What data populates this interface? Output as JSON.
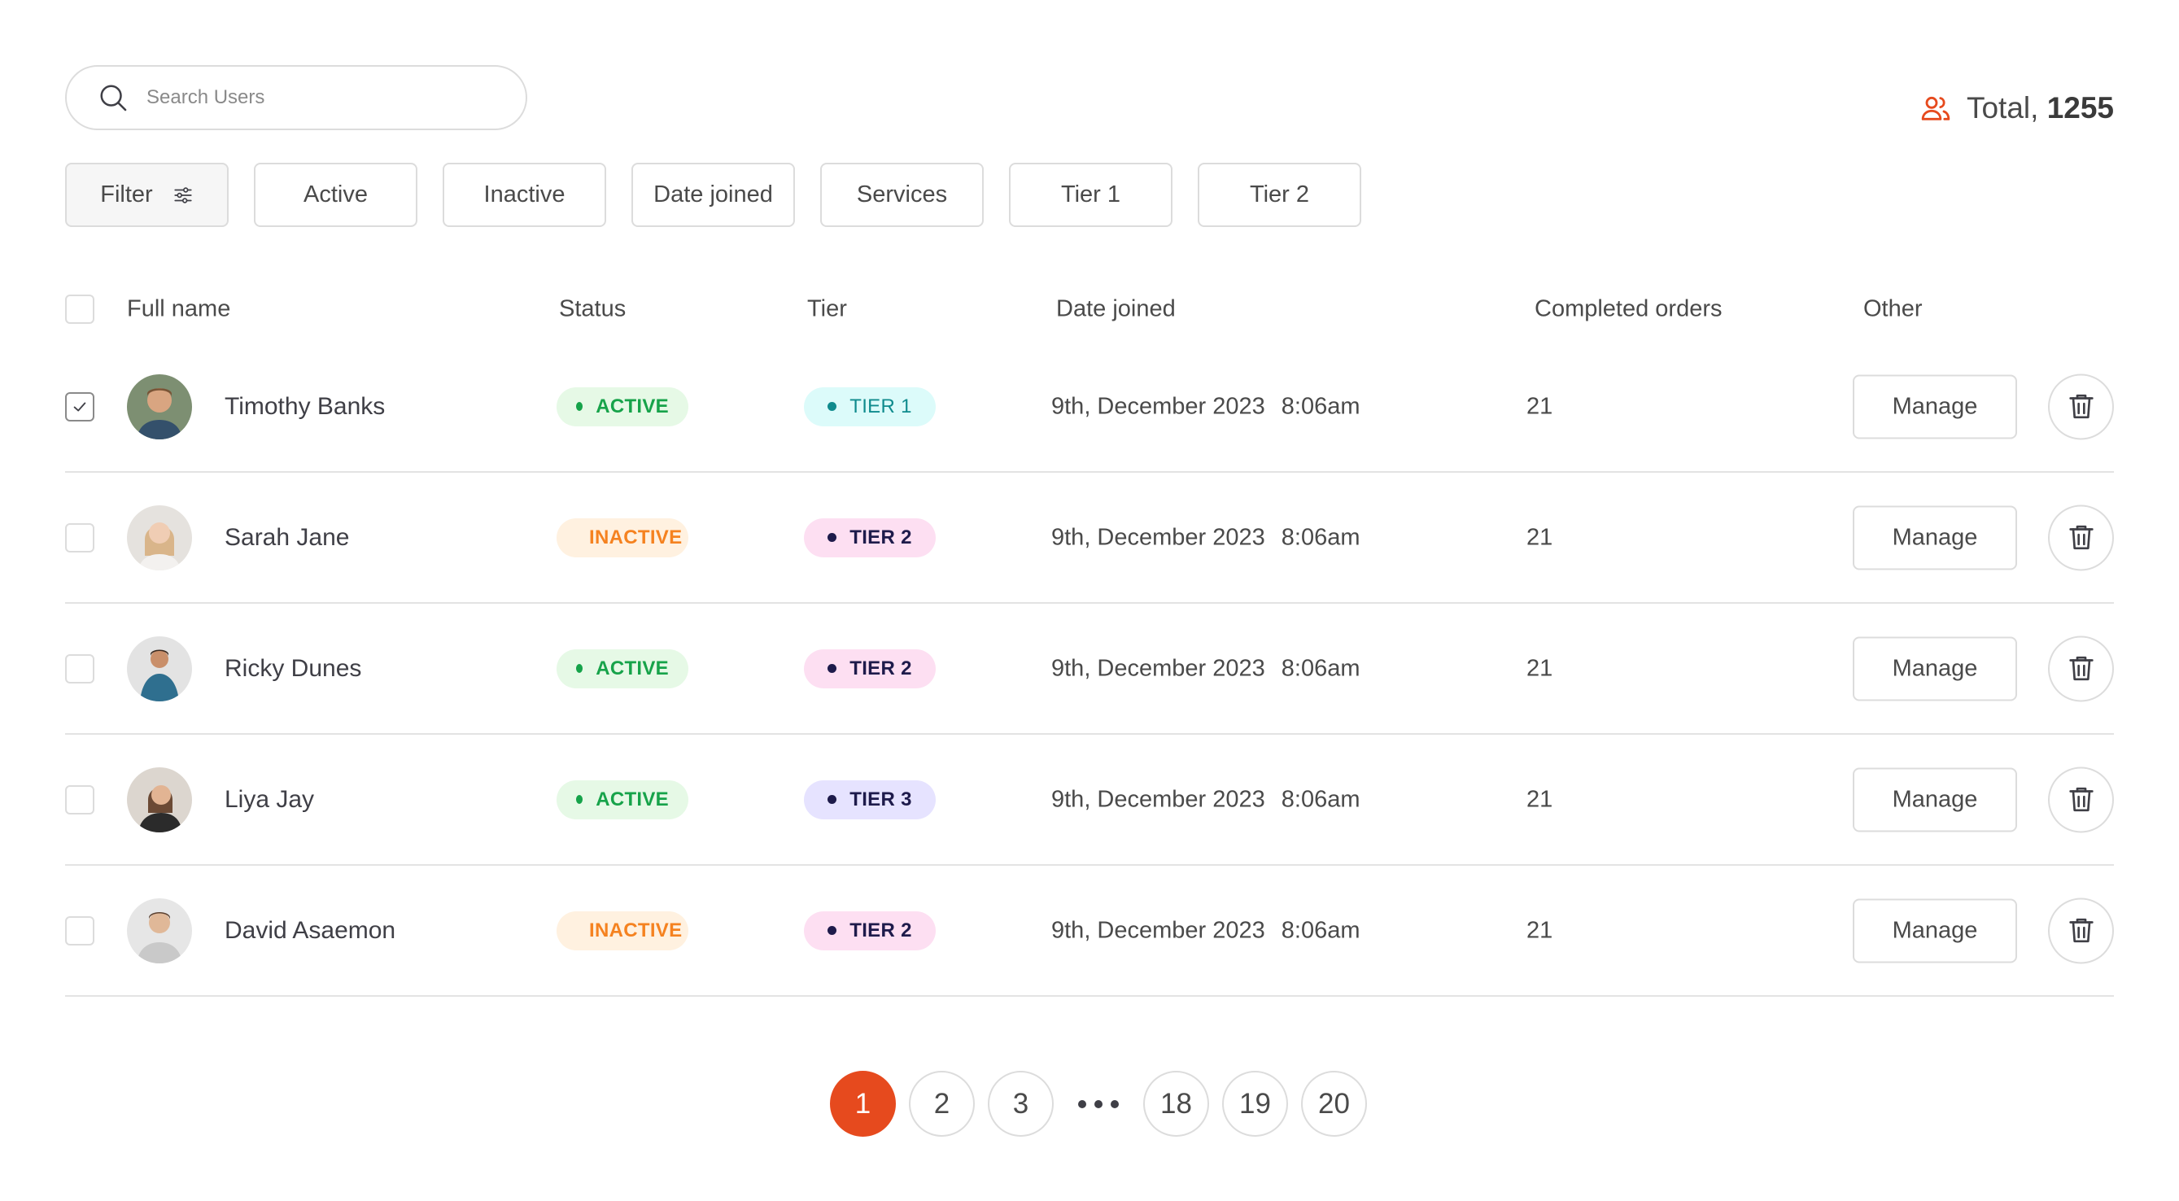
{
  "search": {
    "placeholder": "Search Users",
    "value": ""
  },
  "total": {
    "label": "Total,",
    "count": "1255"
  },
  "filters": [
    {
      "label": "Filter"
    },
    {
      "label": "Active"
    },
    {
      "label": "Inactive"
    },
    {
      "label": "Date joined"
    },
    {
      "label": "Services"
    },
    {
      "label": "Tier 1"
    },
    {
      "label": "Tier 2"
    }
  ],
  "columns": {
    "full_name": "Full name",
    "status": "Status",
    "tier": "Tier",
    "date_joined": "Date joined",
    "completed_orders": "Completed orders",
    "other": "Other"
  },
  "rows": [
    {
      "checked": true,
      "name": "Timothy Banks",
      "status": "ACTIVE",
      "tier": "TIER 1",
      "date": "9th, December 2023",
      "time": "8:06am",
      "orders": "21",
      "manage": "Manage"
    },
    {
      "checked": false,
      "name": "Sarah Jane",
      "status": "INACTIVE",
      "tier": "TIER 2",
      "date": "9th, December 2023",
      "time": "8:06am",
      "orders": "21",
      "manage": "Manage"
    },
    {
      "checked": false,
      "name": "Ricky Dunes",
      "status": "ACTIVE",
      "tier": "TIER 2",
      "date": "9th, December 2023",
      "time": "8:06am",
      "orders": "21",
      "manage": "Manage"
    },
    {
      "checked": false,
      "name": "Liya Jay",
      "status": "ACTIVE",
      "tier": "TIER 3",
      "date": "9th, December 2023",
      "time": "8:06am",
      "orders": "21",
      "manage": "Manage"
    },
    {
      "checked": false,
      "name": "David Asaemon",
      "status": "INACTIVE",
      "tier": "TIER 2",
      "date": "9th, December 2023",
      "time": "8:06am",
      "orders": "21",
      "manage": "Manage"
    }
  ],
  "pagination": {
    "pages": [
      "1",
      "2",
      "3",
      "18",
      "19",
      "20"
    ],
    "current": "1"
  },
  "colors": {
    "accent": "#e64a1e",
    "active": "#17a34a",
    "inactive": "#f58220"
  }
}
